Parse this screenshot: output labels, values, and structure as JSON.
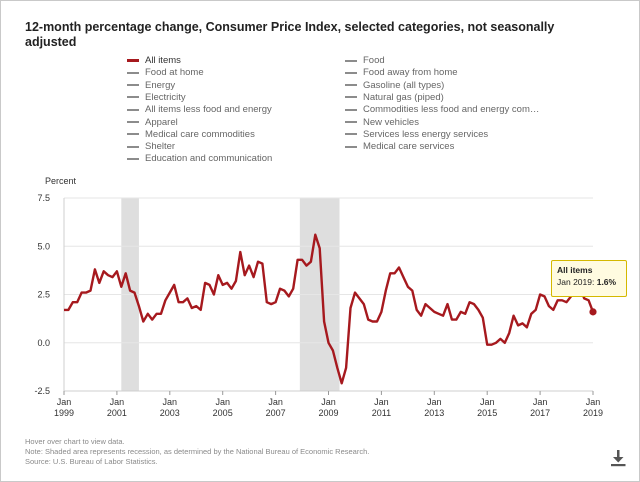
{
  "title": "12-month percentage change, Consumer Price Index, selected categories, not seasonally adjusted",
  "legend": [
    {
      "label": "All items",
      "active": true
    },
    {
      "label": "Food",
      "active": false
    },
    {
      "label": "Food at home",
      "active": false
    },
    {
      "label": "Food away from home",
      "active": false
    },
    {
      "label": "Energy",
      "active": false
    },
    {
      "label": "Gasoline (all types)",
      "active": false
    },
    {
      "label": "Electricity",
      "active": false
    },
    {
      "label": "Natural gas (piped)",
      "active": false
    },
    {
      "label": "All items less food and energy",
      "active": false
    },
    {
      "label": "Commodities less food and energy com…",
      "active": false
    },
    {
      "label": "Apparel",
      "active": false
    },
    {
      "label": "New vehicles",
      "active": false
    },
    {
      "label": "Medical care commodities",
      "active": false
    },
    {
      "label": "Services less energy services",
      "active": false
    },
    {
      "label": "Shelter",
      "active": false
    },
    {
      "label": "Medical care services",
      "active": false
    },
    {
      "label": "Education and communication",
      "active": false
    }
  ],
  "tooltip": {
    "title": "All items",
    "date": "Jan 2019:",
    "value": "1.6%"
  },
  "notes": {
    "hover": "Hover over chart to view data.",
    "shading": "Note: Shaded area represents recession, as determined by the National Bureau of Economic Research.",
    "source": "Source: U.S. Bureau of Labor Statistics."
  },
  "colors": {
    "series": "#a6191e",
    "recession": "#dedede",
    "legend_inactive": "#8c8c8c",
    "tooltip_bg": "#fffbe0",
    "tooltip_border": "#d4b800"
  },
  "icons": {
    "download": "download-icon"
  },
  "chart_data": {
    "type": "line",
    "ylabel": "Percent",
    "ylim": [
      -2.5,
      7.5
    ],
    "yticks": [
      "7.5",
      "5.0",
      "2.5",
      "0.0",
      "-2.5"
    ],
    "xlim": [
      "1999-01",
      "2019-01"
    ],
    "xticks": [
      {
        "month": "Jan",
        "year": "1999"
      },
      {
        "month": "Jan",
        "year": "2001"
      },
      {
        "month": "Jan",
        "year": "2003"
      },
      {
        "month": "Jan",
        "year": "2005"
      },
      {
        "month": "Jan",
        "year": "2007"
      },
      {
        "month": "Jan",
        "year": "2009"
      },
      {
        "month": "Jan",
        "year": "2011"
      },
      {
        "month": "Jan",
        "year": "2013"
      },
      {
        "month": "Jan",
        "year": "2015"
      },
      {
        "month": "Jan",
        "year": "2017"
      },
      {
        "month": "Jan",
        "year": "2019"
      }
    ],
    "recessions": [
      {
        "start": "2001-03",
        "end": "2001-11"
      },
      {
        "start": "2007-12",
        "end": "2009-06"
      }
    ],
    "grid": true,
    "series": [
      {
        "name": "All items",
        "points": [
          [
            "1999-01",
            1.7
          ],
          [
            "1999-03",
            1.7
          ],
          [
            "1999-05",
            2.1
          ],
          [
            "1999-07",
            2.1
          ],
          [
            "1999-09",
            2.6
          ],
          [
            "1999-11",
            2.6
          ],
          [
            "2000-01",
            2.7
          ],
          [
            "2000-03",
            3.8
          ],
          [
            "2000-05",
            3.1
          ],
          [
            "2000-07",
            3.7
          ],
          [
            "2000-09",
            3.5
          ],
          [
            "2000-11",
            3.4
          ],
          [
            "2001-01",
            3.7
          ],
          [
            "2001-03",
            2.9
          ],
          [
            "2001-05",
            3.6
          ],
          [
            "2001-07",
            2.7
          ],
          [
            "2001-09",
            2.6
          ],
          [
            "2001-11",
            1.9
          ],
          [
            "2002-01",
            1.1
          ],
          [
            "2002-03",
            1.5
          ],
          [
            "2002-05",
            1.2
          ],
          [
            "2002-07",
            1.5
          ],
          [
            "2002-09",
            1.5
          ],
          [
            "2002-11",
            2.2
          ],
          [
            "2003-01",
            2.6
          ],
          [
            "2003-03",
            3.0
          ],
          [
            "2003-05",
            2.1
          ],
          [
            "2003-07",
            2.1
          ],
          [
            "2003-09",
            2.3
          ],
          [
            "2003-11",
            1.8
          ],
          [
            "2004-01",
            1.9
          ],
          [
            "2004-03",
            1.7
          ],
          [
            "2004-05",
            3.1
          ],
          [
            "2004-07",
            3.0
          ],
          [
            "2004-09",
            2.5
          ],
          [
            "2004-11",
            3.5
          ],
          [
            "2005-01",
            3.0
          ],
          [
            "2005-03",
            3.1
          ],
          [
            "2005-05",
            2.8
          ],
          [
            "2005-07",
            3.2
          ],
          [
            "2005-09",
            4.7
          ],
          [
            "2005-11",
            3.5
          ],
          [
            "2006-01",
            4.0
          ],
          [
            "2006-03",
            3.4
          ],
          [
            "2006-05",
            4.2
          ],
          [
            "2006-07",
            4.1
          ],
          [
            "2006-09",
            2.1
          ],
          [
            "2006-11",
            2.0
          ],
          [
            "2007-01",
            2.1
          ],
          [
            "2007-03",
            2.8
          ],
          [
            "2007-05",
            2.7
          ],
          [
            "2007-07",
            2.4
          ],
          [
            "2007-09",
            2.8
          ],
          [
            "2007-11",
            4.3
          ],
          [
            "2008-01",
            4.3
          ],
          [
            "2008-03",
            4.0
          ],
          [
            "2008-05",
            4.2
          ],
          [
            "2008-07",
            5.6
          ],
          [
            "2008-09",
            4.9
          ],
          [
            "2008-11",
            1.1
          ],
          [
            "2009-01",
            0.0
          ],
          [
            "2009-03",
            -0.4
          ],
          [
            "2009-05",
            -1.3
          ],
          [
            "2009-07",
            -2.1
          ],
          [
            "2009-09",
            -1.3
          ],
          [
            "2009-11",
            1.8
          ],
          [
            "2010-01",
            2.6
          ],
          [
            "2010-03",
            2.3
          ],
          [
            "2010-05",
            2.0
          ],
          [
            "2010-07",
            1.2
          ],
          [
            "2010-09",
            1.1
          ],
          [
            "2010-11",
            1.1
          ],
          [
            "2011-01",
            1.6
          ],
          [
            "2011-03",
            2.7
          ],
          [
            "2011-05",
            3.6
          ],
          [
            "2011-07",
            3.6
          ],
          [
            "2011-09",
            3.9
          ],
          [
            "2011-11",
            3.4
          ],
          [
            "2012-01",
            2.9
          ],
          [
            "2012-03",
            2.7
          ],
          [
            "2012-05",
            1.7
          ],
          [
            "2012-07",
            1.4
          ],
          [
            "2012-09",
            2.0
          ],
          [
            "2012-11",
            1.8
          ],
          [
            "2013-01",
            1.6
          ],
          [
            "2013-03",
            1.5
          ],
          [
            "2013-05",
            1.4
          ],
          [
            "2013-07",
            2.0
          ],
          [
            "2013-09",
            1.2
          ],
          [
            "2013-11",
            1.2
          ],
          [
            "2014-01",
            1.6
          ],
          [
            "2014-03",
            1.5
          ],
          [
            "2014-05",
            2.1
          ],
          [
            "2014-07",
            2.0
          ],
          [
            "2014-09",
            1.7
          ],
          [
            "2014-11",
            1.3
          ],
          [
            "2015-01",
            -0.1
          ],
          [
            "2015-03",
            -0.1
          ],
          [
            "2015-05",
            0.0
          ],
          [
            "2015-07",
            0.2
          ],
          [
            "2015-09",
            0.0
          ],
          [
            "2015-11",
            0.5
          ],
          [
            "2016-01",
            1.4
          ],
          [
            "2016-03",
            0.9
          ],
          [
            "2016-05",
            1.0
          ],
          [
            "2016-07",
            0.8
          ],
          [
            "2016-09",
            1.5
          ],
          [
            "2016-11",
            1.7
          ],
          [
            "2017-01",
            2.5
          ],
          [
            "2017-03",
            2.4
          ],
          [
            "2017-05",
            1.9
          ],
          [
            "2017-07",
            1.7
          ],
          [
            "2017-09",
            2.2
          ],
          [
            "2017-11",
            2.2
          ],
          [
            "2018-01",
            2.1
          ],
          [
            "2018-03",
            2.4
          ],
          [
            "2018-05",
            2.8
          ],
          [
            "2018-07",
            2.9
          ],
          [
            "2018-09",
            2.3
          ],
          [
            "2018-11",
            2.2
          ],
          [
            "2019-01",
            1.6
          ]
        ]
      }
    ]
  }
}
